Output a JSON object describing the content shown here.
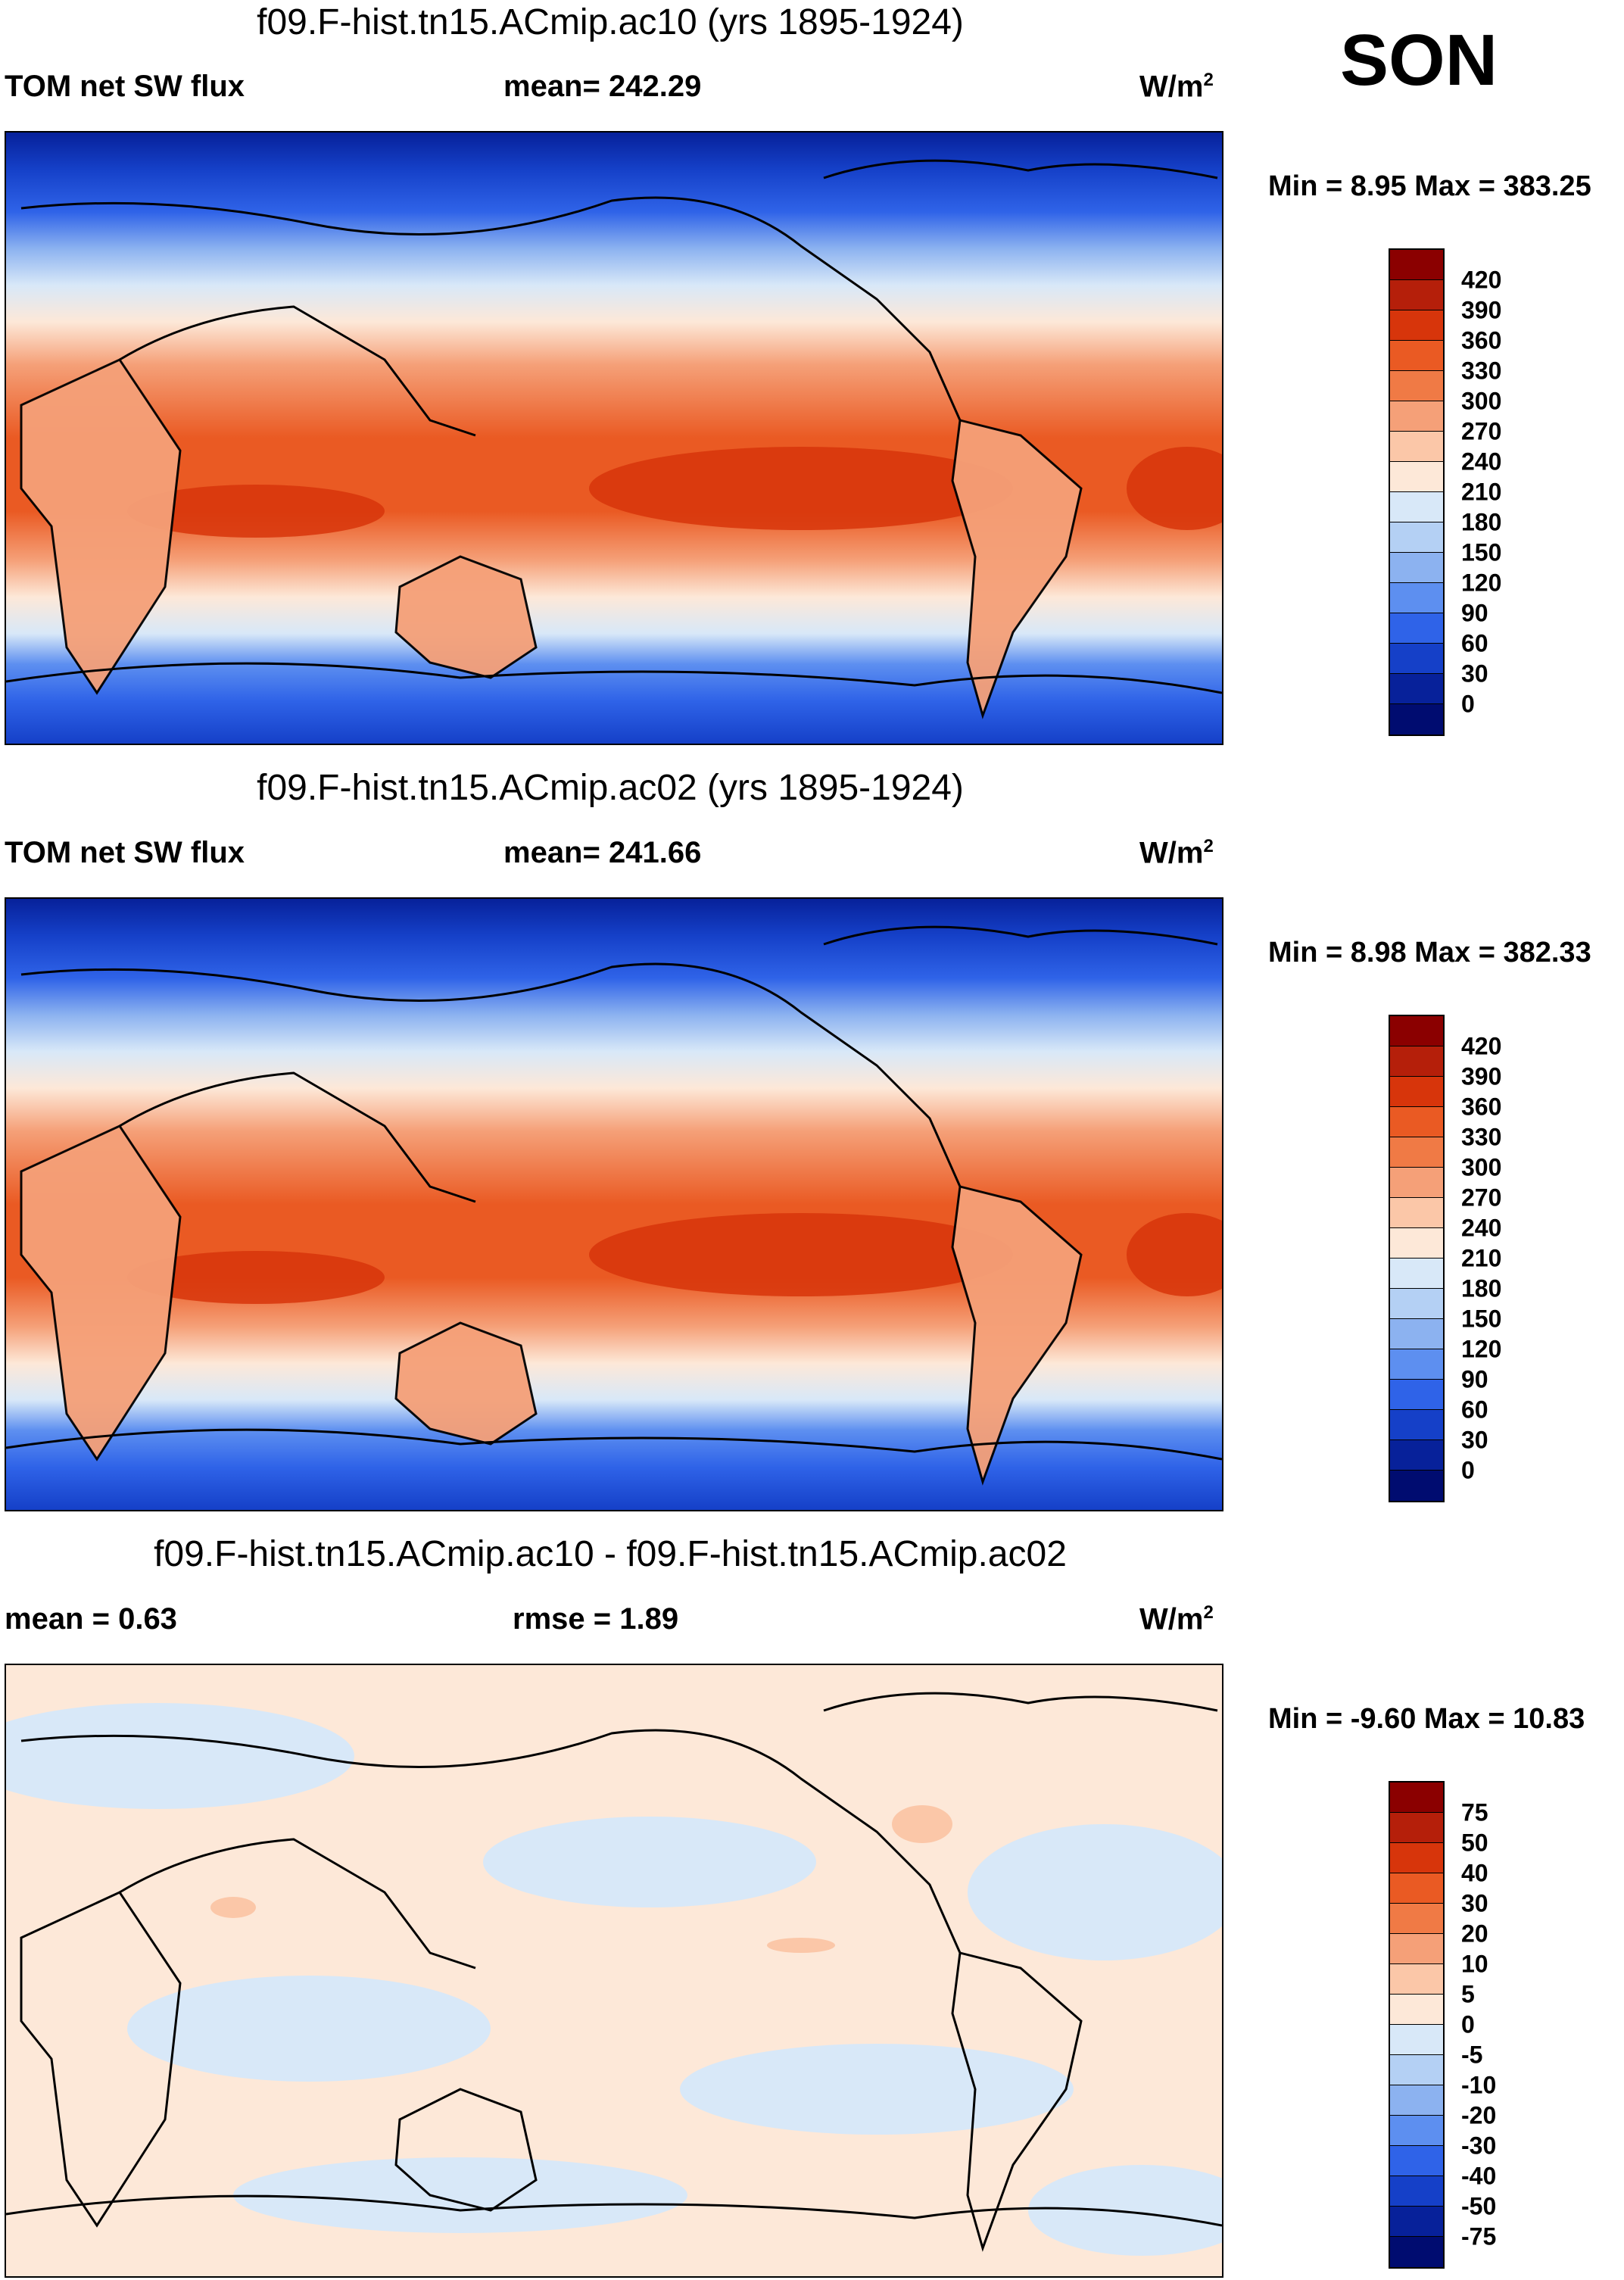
{
  "season": "SON",
  "units_main": "W/m",
  "units_sup": "2",
  "panels": [
    {
      "title": "f09.F-hist.tn15.ACmip.ac10 (yrs 1895-1924)",
      "left_label": "TOM net SW flux",
      "mid_label": "mean= 242.29",
      "minmax": "Min =   8.95 Max = 383.25"
    },
    {
      "title": "f09.F-hist.tn15.ACmip.ac02 (yrs 1895-1924)",
      "left_label": "TOM net SW flux",
      "mid_label": "mean= 241.66",
      "minmax": "Min =   8.98 Max = 382.33"
    },
    {
      "title": "f09.F-hist.tn15.ACmip.ac10 - f09.F-hist.tn15.ACmip.ac02",
      "left_label": "mean =   0.63",
      "mid_label": "rmse =   1.89",
      "minmax": "Min =  -9.60 Max =  10.83"
    }
  ],
  "colorbar_abs": {
    "labels": [
      "420",
      "390",
      "360",
      "330",
      "300",
      "270",
      "240",
      "210",
      "180",
      "150",
      "120",
      "90",
      "60",
      "30",
      "0"
    ],
    "colors": [
      "#8b0000",
      "#b51f0a",
      "#d7350b",
      "#ea5a23",
      "#f07a45",
      "#f5a078",
      "#fbc7a8",
      "#fde8d8",
      "#d8e8f8",
      "#b4d0f4",
      "#8cb2f0",
      "#5d8ff0",
      "#2f63e8",
      "#1540c8",
      "#07219a",
      "#000c70"
    ]
  },
  "colorbar_diff": {
    "labels": [
      "75",
      "50",
      "40",
      "30",
      "20",
      "10",
      "5",
      "0",
      "-5",
      "-10",
      "-20",
      "-30",
      "-40",
      "-50",
      "-75"
    ],
    "colors": [
      "#8b0000",
      "#b51f0a",
      "#d7350b",
      "#ea5a23",
      "#f07a45",
      "#f5a078",
      "#fbc7a8",
      "#fde8d8",
      "#d8e8f8",
      "#b4d0f4",
      "#8cb2f0",
      "#5d8ff0",
      "#2f63e8",
      "#1540c8",
      "#07219a",
      "#000c70"
    ]
  }
}
